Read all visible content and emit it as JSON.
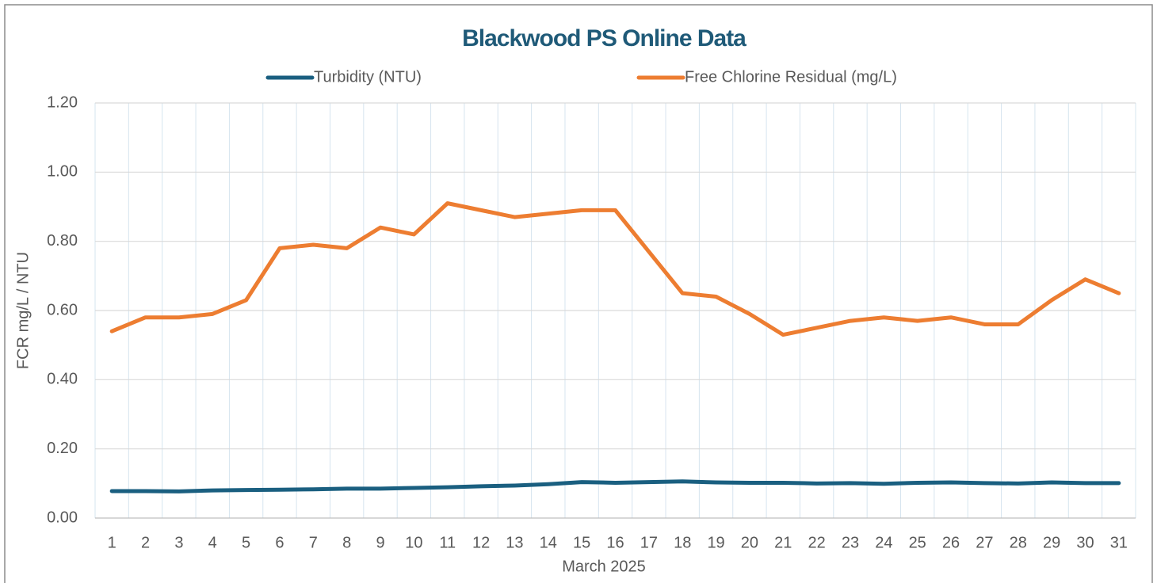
{
  "chart_data": {
    "type": "line",
    "title": "Blackwood PS Online Data",
    "x_label": "March 2025",
    "y_label": "FCR mg/L / NTU",
    "categories": [
      "1",
      "2",
      "3",
      "4",
      "5",
      "6",
      "7",
      "8",
      "9",
      "10",
      "11",
      "12",
      "13",
      "14",
      "15",
      "16",
      "17",
      "18",
      "19",
      "20",
      "21",
      "22",
      "23",
      "24",
      "25",
      "26",
      "27",
      "28",
      "29",
      "30",
      "31"
    ],
    "series": [
      {
        "name": "Turbidity (NTU)",
        "color": "#1a5f80",
        "values": [
          0.078,
          0.078,
          0.077,
          0.08,
          0.081,
          0.082,
          0.083,
          0.085,
          0.085,
          0.087,
          0.089,
          0.092,
          0.094,
          0.098,
          0.104,
          0.102,
          0.104,
          0.106,
          0.103,
          0.102,
          0.102,
          0.1,
          0.101,
          0.099,
          0.102,
          0.103,
          0.101,
          0.1,
          0.103,
          0.101,
          0.101
        ]
      },
      {
        "name": "Free Chlorine Residual (mg/L)",
        "color": "#ed7d31",
        "values": [
          0.54,
          0.58,
          0.58,
          0.59,
          0.63,
          0.78,
          0.79,
          0.78,
          0.84,
          0.82,
          0.91,
          0.89,
          0.87,
          0.88,
          0.89,
          0.89,
          0.77,
          0.65,
          0.64,
          0.59,
          0.53,
          0.55,
          0.57,
          0.58,
          0.57,
          0.58,
          0.56,
          0.56,
          0.63,
          0.69,
          0.65
        ]
      }
    ],
    "ylim": [
      0,
      1.2
    ],
    "yticks": [
      {
        "value": 0,
        "label": "0.00"
      },
      {
        "value": 0.2,
        "label": "0.20"
      },
      {
        "value": 0.4,
        "label": "0.40"
      },
      {
        "value": 0.6,
        "label": "0.60"
      },
      {
        "value": 0.8,
        "label": "0.80"
      },
      {
        "value": 1,
        "label": "1.00"
      },
      {
        "value": 1.2,
        "label": "1.20"
      }
    ],
    "grid": true,
    "legend": "top"
  }
}
